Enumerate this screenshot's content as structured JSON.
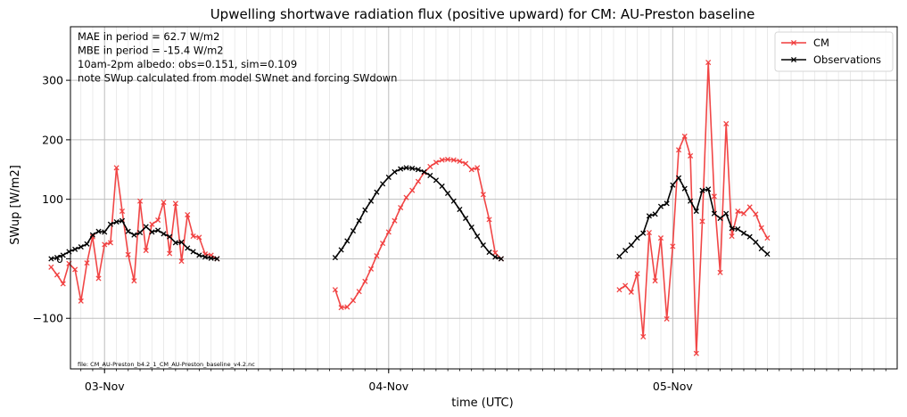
{
  "chart_data": {
    "type": "line",
    "title": "Upwelling shortwave radiation flux (positive upward) for CM: AU-Preston baseline",
    "xlabel": "time (UTC)",
    "ylabel": "SWup [W/m2]",
    "ylim": [
      -185,
      390
    ],
    "xlim": [
      -0.12,
      2.79
    ],
    "yticks": [
      -100,
      0,
      100,
      200,
      300
    ],
    "xticks": [
      {
        "value": 0,
        "label": "03-Nov"
      },
      {
        "value": 1,
        "label": "04-Nov"
      },
      {
        "value": 2,
        "label": "05-Nov"
      }
    ],
    "grid": true,
    "legend_position": "top-right",
    "annotations": [
      "MAE in period = 62.7 W/m2",
      "MBE in period = -15.4 W/m2",
      "10am-2pm albedo: obs=0.151, sim=0.109",
      "  note SWup calculated from model SWnet and forcing SWdown"
    ],
    "file_note": "file: CM_AU-Preston_b4.2_1_CM_AU-Preston_baseline_v4.2.nc",
    "series": [
      {
        "name": "CM",
        "color": "#f03c3c",
        "x_unit": "days since 03-Nov 00:00 UTC",
        "segments": [
          {
            "x": [
              -0.188,
              -0.167,
              -0.146,
              -0.125,
              -0.104,
              -0.083,
              -0.062,
              -0.042,
              -0.021,
              0.0,
              0.021,
              0.042,
              0.062,
              0.083,
              0.104,
              0.125,
              0.146,
              0.167,
              0.188,
              0.208,
              0.229,
              0.25,
              0.271,
              0.292,
              0.312,
              0.333,
              0.354,
              0.375,
              0.396
            ],
            "y": [
              -14,
              -27,
              -42,
              -8,
              -18,
              -71,
              -7,
              37,
              -33,
              24,
              27,
              153,
              80,
              7,
              -37,
              97,
              14,
              58,
              65,
              95,
              9,
              93,
              -4,
              74,
              38,
              36,
              8,
              6,
              0
            ]
          },
          {
            "x": [
              0.812,
              0.833,
              0.854,
              0.875,
              0.896,
              0.917,
              0.938,
              0.958,
              0.979,
              1.0,
              1.021,
              1.042,
              1.062,
              1.083,
              1.104,
              1.125,
              1.146,
              1.167,
              1.188,
              1.208,
              1.229,
              1.25,
              1.271,
              1.292,
              1.312,
              1.333,
              1.354,
              1.375,
              1.396
            ],
            "y": [
              -52,
              -82,
              -81,
              -70,
              -55,
              -38,
              -17,
              5,
              26,
              45,
              64,
              86,
              103,
              115,
              130,
              145,
              155,
              162,
              166,
              167,
              166,
              164,
              160,
              150,
              153,
              108,
              66,
              10,
              0
            ]
          },
          {
            "x": [
              1.812,
              1.833,
              1.854,
              1.875,
              1.896,
              1.917,
              1.938,
              1.958,
              1.979,
              2.0,
              2.021,
              2.042,
              2.062,
              2.083,
              2.104,
              2.125,
              2.146,
              2.167,
              2.188,
              2.208,
              2.229,
              2.25,
              2.271,
              2.292,
              2.312,
              2.333,
              2.354,
              2.375,
              2.396
            ],
            "y": [
              -52,
              -45,
              -56,
              -25,
              -131,
              44,
              -37,
              35,
              -101,
              21,
              183,
              206,
              173,
              -159,
              63,
              330,
              105,
              -23,
              227,
              38,
              80,
              76,
              87,
              75,
              52,
              35,
              null,
              null,
              null
            ]
          }
        ]
      },
      {
        "name": "Observations",
        "color": "#000000",
        "x_unit": "days since 03-Nov 00:00 UTC",
        "segments": [
          {
            "x": [
              -0.188,
              -0.167,
              -0.146,
              -0.125,
              -0.104,
              -0.083,
              -0.062,
              -0.042,
              -0.021,
              0.0,
              0.021,
              0.042,
              0.062,
              0.083,
              0.104,
              0.125,
              0.146,
              0.167,
              0.188,
              0.208,
              0.229,
              0.25,
              0.271,
              0.292,
              0.312,
              0.333,
              0.354,
              0.375,
              0.396
            ],
            "y": [
              0,
              2,
              6,
              12,
              16,
              20,
              25,
              40,
              46,
              45,
              58,
              62,
              64,
              46,
              40,
              44,
              54,
              45,
              48,
              42,
              37,
              27,
              28,
              18,
              12,
              6,
              3,
              1,
              0
            ]
          },
          {
            "x": [
              0.812,
              0.833,
              0.854,
              0.875,
              0.896,
              0.917,
              0.938,
              0.958,
              0.979,
              1.0,
              1.021,
              1.042,
              1.062,
              1.083,
              1.104,
              1.125,
              1.146,
              1.167,
              1.188,
              1.208,
              1.229,
              1.25,
              1.271,
              1.292,
              1.312,
              1.333,
              1.354,
              1.375,
              1.396
            ],
            "y": [
              2,
              15,
              30,
              47,
              64,
              82,
              97,
              112,
              126,
              137,
              146,
              151,
              153,
              152,
              150,
              146,
              140,
              132,
              122,
              110,
              97,
              83,
              68,
              53,
              38,
              23,
              11,
              3,
              0
            ]
          },
          {
            "x": [
              1.812,
              1.833,
              1.854,
              1.875,
              1.896,
              1.917,
              1.938,
              1.958,
              1.979,
              2.0,
              2.021,
              2.042,
              2.062,
              2.083,
              2.104,
              2.125,
              2.146,
              2.167,
              2.188,
              2.208,
              2.229,
              2.25,
              2.271,
              2.292,
              2.312,
              2.333
            ],
            "y": [
              4,
              14,
              23,
              35,
              43,
              72,
              75,
              88,
              93,
              124,
              136,
              118,
              97,
              80,
              115,
              117,
              76,
              68,
              76,
              51,
              50,
              43,
              37,
              28,
              17,
              8
            ]
          }
        ]
      }
    ]
  }
}
